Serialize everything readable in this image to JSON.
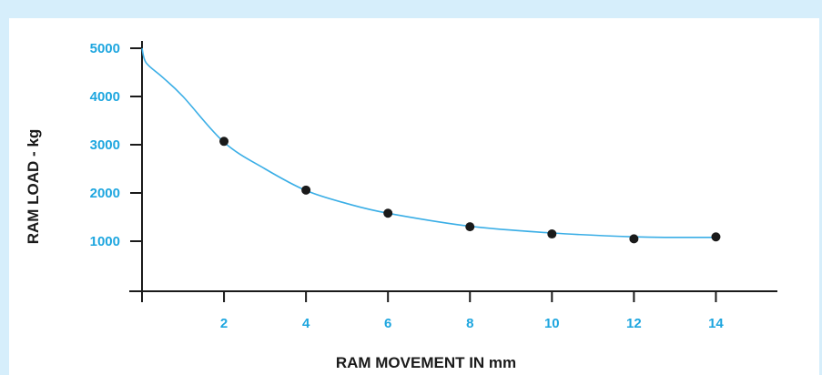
{
  "colors": {
    "frame_background": "#d6eefb",
    "panel_background": "#ffffff",
    "tick_label": "#1ea6df",
    "axis": "#1a1a1a",
    "curve": "#3aaee6",
    "points": "#1a1a1a"
  },
  "chart_data": {
    "type": "scatter",
    "title": "",
    "xlabel": "RAM MOVEMENT IN mm",
    "ylabel": "RAM LOAD - kg",
    "xlim": [
      0,
      15.5
    ],
    "ylim": [
      -1000,
      5300
    ],
    "xticks": [
      2,
      4,
      6,
      8,
      10,
      12,
      14
    ],
    "xtick_labels": [
      "2",
      "4",
      "6",
      "8",
      "10",
      "12",
      "14"
    ],
    "yticks": [
      1000,
      2000,
      3000,
      4000,
      5000
    ],
    "ytick_labels": [
      "1000",
      "2000",
      "3000",
      "4000",
      "5000"
    ],
    "grid": false,
    "series": [
      {
        "type": "scatter",
        "x": [
          2,
          4,
          6,
          8,
          10,
          12,
          14
        ],
        "y": [
          3070,
          2060,
          1580,
          1300,
          1150,
          1050,
          1090
        ]
      },
      {
        "type": "line",
        "x": [
          0,
          0.1,
          0.5,
          1,
          2,
          3,
          4,
          5,
          6,
          8,
          10,
          12,
          13,
          14
        ],
        "y": [
          5000,
          4700,
          4400,
          4000,
          3050,
          2500,
          2050,
          1780,
          1580,
          1310,
          1170,
          1090,
          1080,
          1080
        ]
      }
    ]
  }
}
